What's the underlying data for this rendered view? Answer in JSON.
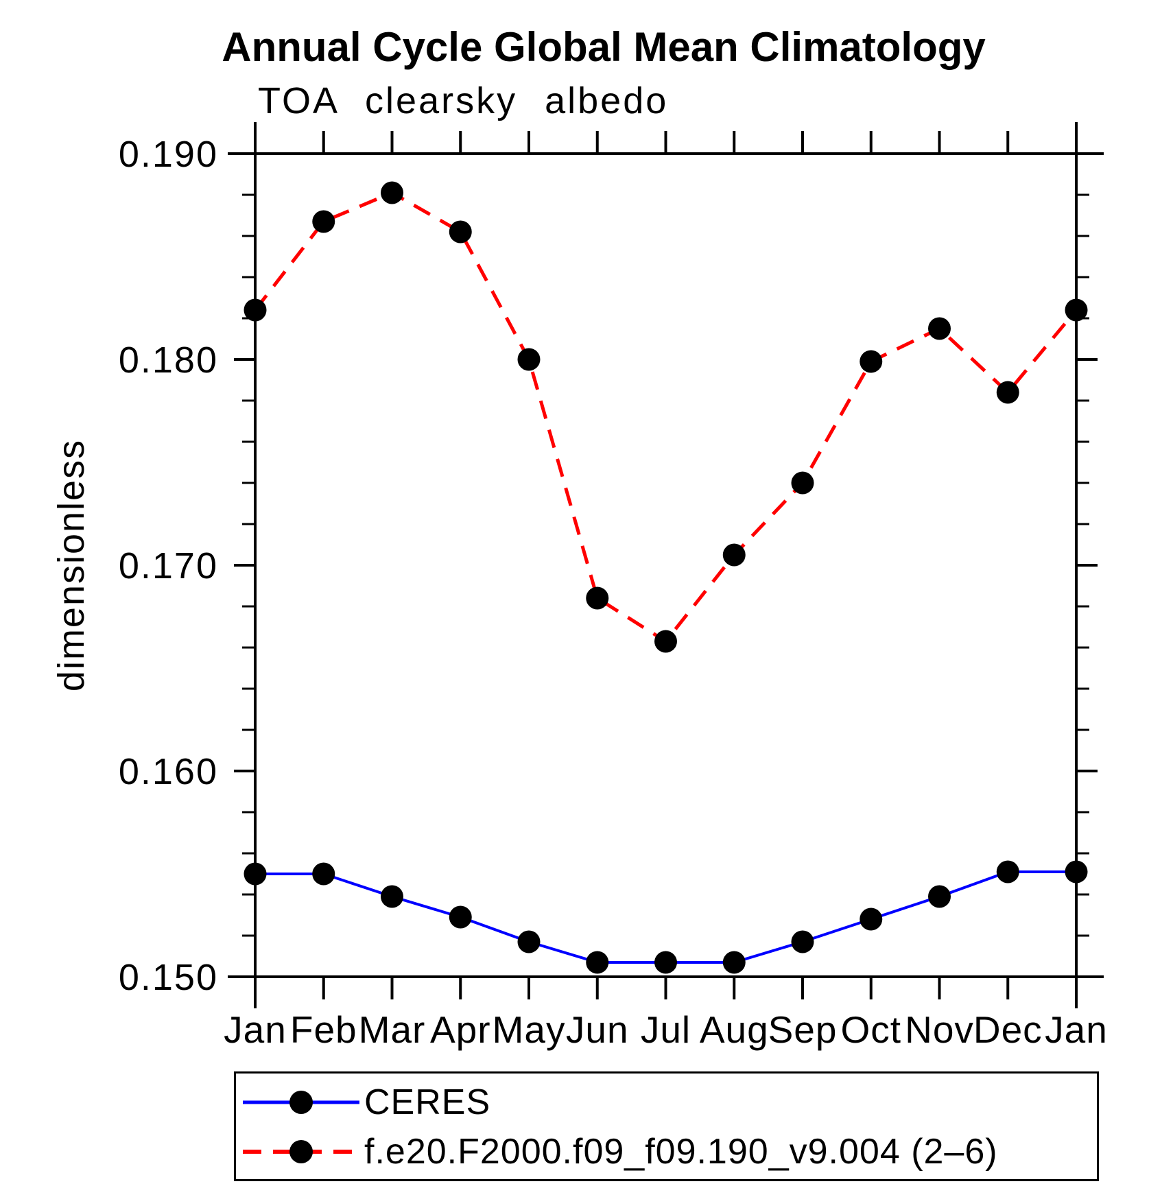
{
  "header": {
    "title": "Annual Cycle Global Mean Climatology",
    "subtitle": "TOA clearsky albedo"
  },
  "y_axis": {
    "label": "dimensionless",
    "tick_labels": [
      "0.150",
      "0.160",
      "0.170",
      "0.180",
      "0.190"
    ]
  },
  "x_axis": {
    "tick_labels": [
      "Jan",
      "Feb",
      "Mar",
      "Apr",
      "May",
      "Jun",
      "Jul",
      "Aug",
      "Sep",
      "Oct",
      "Nov",
      "Dec",
      "Jan"
    ]
  },
  "legend": {
    "entries": [
      {
        "label": "CERES",
        "color": "#0000ff",
        "style": "solid"
      },
      {
        "label": "f.e20.F2000.f09_f09.190_v9.004 (2–6)",
        "color": "#ff0000",
        "style": "dashed"
      }
    ]
  },
  "chart_data": {
    "type": "line",
    "title": "Annual Cycle Global Mean Climatology",
    "subtitle": "TOA clearsky albedo",
    "xlabel": "",
    "ylabel": "dimensionless",
    "ylim": [
      0.15,
      0.19
    ],
    "y_major_tick_step": 0.01,
    "y_minor_tick_step": 0.002,
    "grid": false,
    "legend_position": "bottom-left",
    "marker_color": "#000000",
    "categories": [
      "Jan",
      "Feb",
      "Mar",
      "Apr",
      "May",
      "Jun",
      "Jul",
      "Aug",
      "Sep",
      "Oct",
      "Nov",
      "Dec",
      "Jan"
    ],
    "series": [
      {
        "name": "CERES",
        "color": "#0000ff",
        "line_style": "solid",
        "marker": "circle",
        "values": [
          0.155,
          0.155,
          0.1539,
          0.1529,
          0.1517,
          0.1507,
          0.1507,
          0.1507,
          0.1517,
          0.1528,
          0.1539,
          0.1551,
          0.1551
        ]
      },
      {
        "name": "f.e20.F2000.f09_f09.190_v9.004 (2–6)",
        "color": "#ff0000",
        "line_style": "dashed",
        "marker": "circle",
        "values": [
          0.1824,
          0.1867,
          0.1881,
          0.1862,
          0.18,
          0.1684,
          0.1663,
          0.1705,
          0.174,
          0.1799,
          0.1815,
          0.1784,
          0.1824
        ]
      }
    ]
  }
}
